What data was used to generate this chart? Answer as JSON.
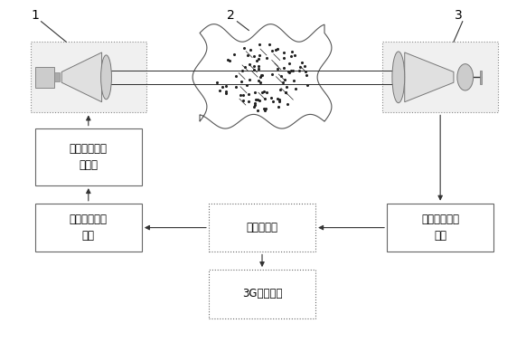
{
  "bg_color": "#ffffff",
  "line_color": "#333333",
  "box_edge_color": "#666666",
  "dotted_edge_color": "#999999",
  "label_1": "1",
  "label_2": "2",
  "label_3": "3",
  "box1_text": "激光驱动与调\n制电路",
  "box2_text": "第二信号处理\n电路",
  "box3_text": "单片机系统",
  "box4_text": "第一信号处理\n电路",
  "box5_text": "3G通讯模块",
  "fig_width": 5.82,
  "fig_height": 3.78
}
